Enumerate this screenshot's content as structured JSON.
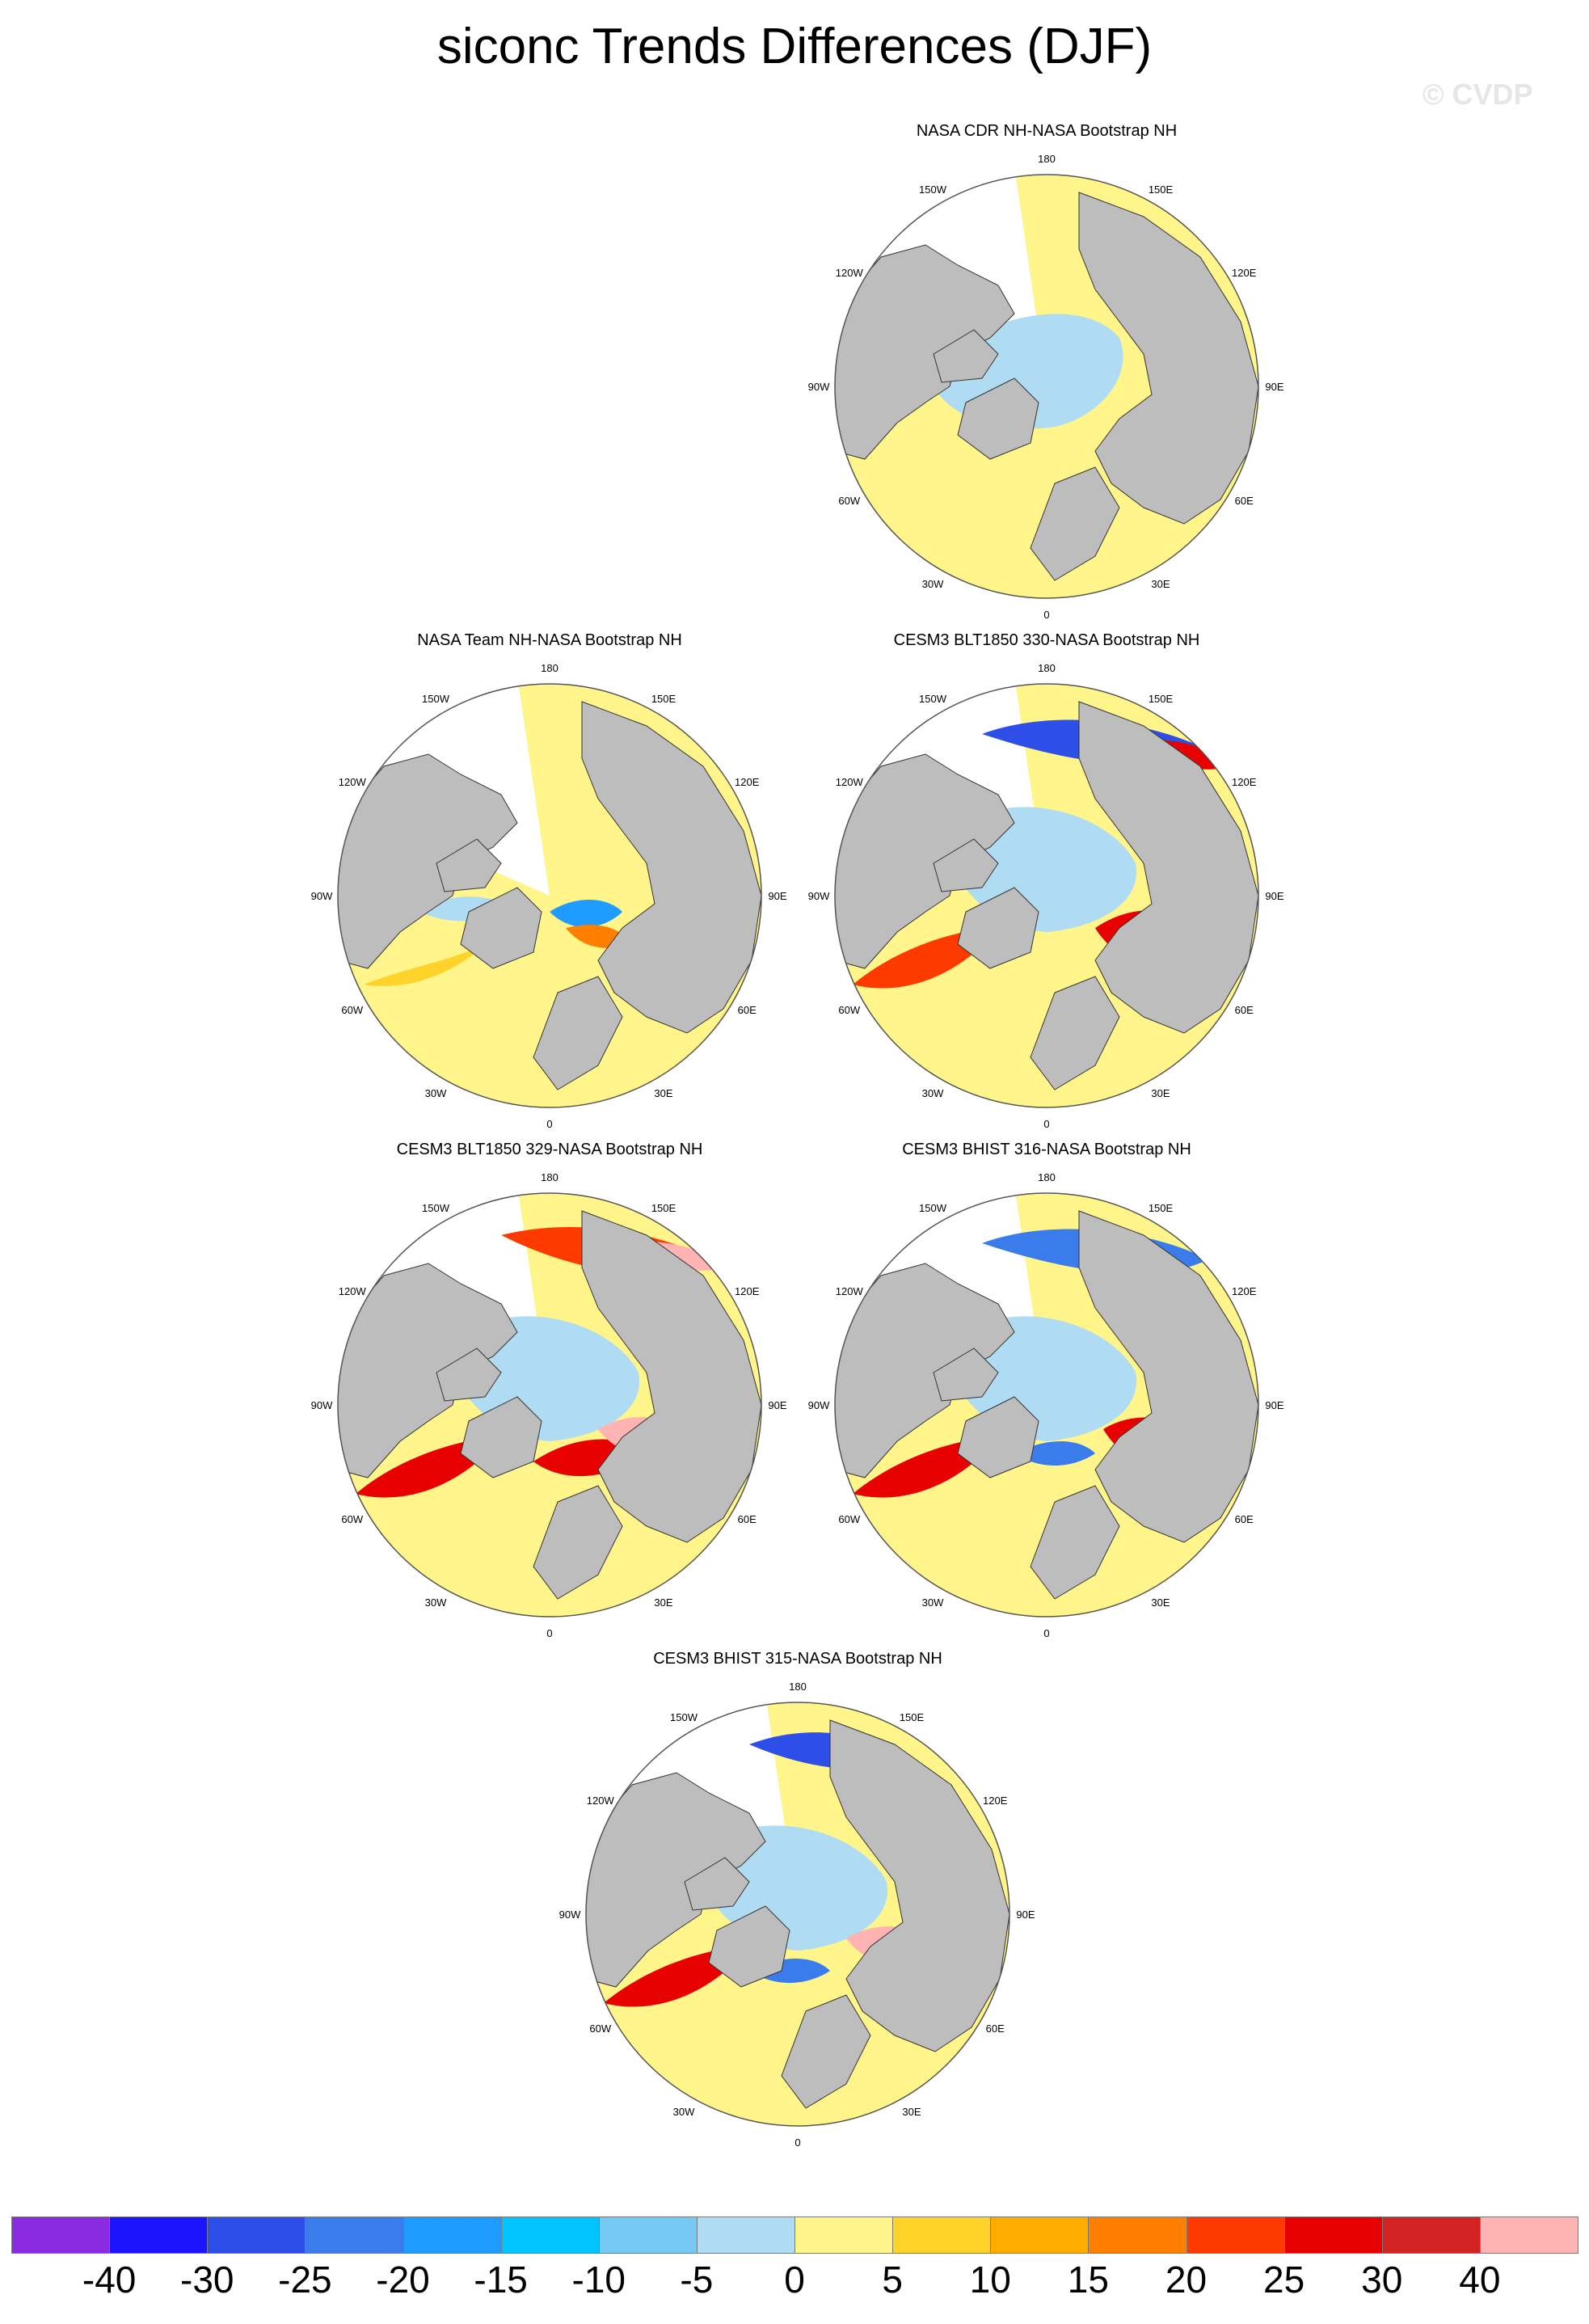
{
  "title": "siconc Trends Differences (DJF)",
  "watermark": "© CVDP",
  "colors": {
    "land": "#bdbdbd",
    "band_0_5": "#fff58a",
    "band_m5_0": "#b0dcf3",
    "outline": "#333333"
  },
  "lon_labels": [
    "180",
    "150E",
    "120E",
    "90E",
    "60E",
    "30E",
    "0",
    "30W",
    "60W",
    "90W",
    "120W",
    "150W"
  ],
  "panels": [
    {
      "title": "NASA CDR NH-NASA Bootstrap NH",
      "style": "cdr"
    },
    {
      "title": "NASA Team NH-NASA Bootstrap NH",
      "style": "team"
    },
    {
      "title": "CESM3 BLT1850 330-NASA Bootstrap NH",
      "style": "model_a"
    },
    {
      "title": "CESM3 BLT1850 329-NASA Bootstrap NH",
      "style": "model_b"
    },
    {
      "title": "CESM3 BHIST 316-NASA Bootstrap NH",
      "style": "model_c"
    },
    {
      "title": "CESM3 BHIST 315-NASA Bootstrap NH",
      "style": "model_d"
    }
  ],
  "colorbar": {
    "colors": [
      "#8a2be2",
      "#1c13ff",
      "#2d4ee8",
      "#3a7cec",
      "#1e9cff",
      "#00c3ff",
      "#76c9f3",
      "#b0dcf3",
      "#fff58a",
      "#ffd329",
      "#ffab00",
      "#ff7f00",
      "#ff3a00",
      "#e90000",
      "#d22222",
      "#ffb3b3"
    ],
    "labels": [
      "-40",
      "-30",
      "-25",
      "-20",
      "-15",
      "-10",
      "-5",
      "0",
      "5",
      "10",
      "15",
      "20",
      "25",
      "30",
      "40"
    ]
  }
}
